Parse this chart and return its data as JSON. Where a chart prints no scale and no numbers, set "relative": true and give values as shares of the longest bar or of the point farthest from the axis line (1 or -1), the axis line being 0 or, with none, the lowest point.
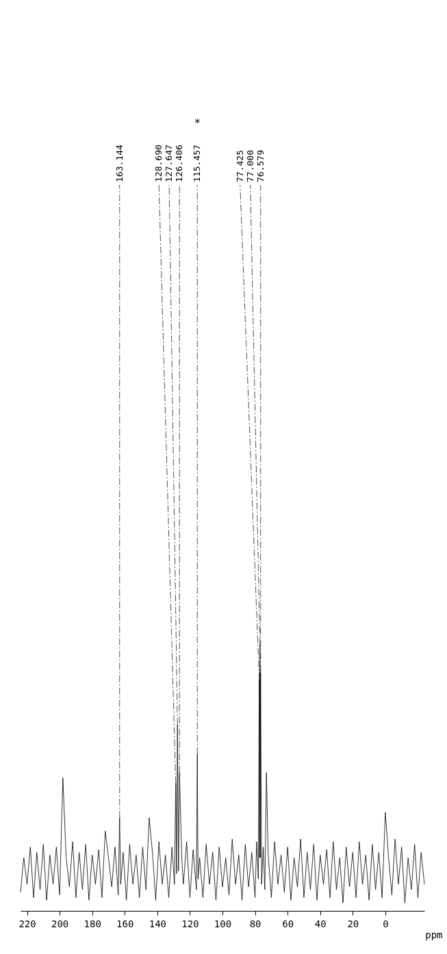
{
  "chart_data": {
    "type": "line",
    "relative": true,
    "xlabel": "ppm",
    "xlim": [
      224,
      -24
    ],
    "xticks": [
      0,
      20,
      40,
      60,
      80,
      100,
      120,
      140,
      160,
      180,
      200,
      220
    ],
    "grid": false,
    "series": [
      {
        "color": "#000000",
        "x": [
          -24,
          -22,
          -20,
          -18,
          -16,
          -14,
          -12,
          -10,
          -8,
          -6,
          -4,
          -2,
          0,
          2,
          4,
          6,
          8,
          10,
          12,
          14,
          16,
          18,
          20,
          22,
          24,
          26,
          28,
          30,
          32,
          34,
          36,
          38,
          40,
          42,
          44,
          46,
          48,
          50,
          52,
          54,
          56,
          58,
          60,
          62,
          64,
          66,
          68,
          70,
          72,
          73,
          74,
          75,
          76,
          76.579,
          76.8,
          77.0,
          77.2,
          77.425,
          78,
          79,
          80,
          82,
          84,
          86,
          88,
          90,
          92,
          94,
          96,
          98,
          100,
          102,
          104,
          106,
          108,
          110,
          112,
          114,
          115,
          115.457,
          116,
          118,
          120,
          122,
          124,
          125,
          126.406,
          127,
          127.647,
          128.2,
          128.69,
          129.5,
          131,
          133,
          135,
          137,
          139,
          141,
          143,
          145,
          147,
          149,
          151,
          153,
          155,
          157,
          159,
          161,
          162.5,
          163.144,
          164,
          166,
          168,
          170,
          172,
          174,
          176,
          178,
          180,
          182,
          184,
          186,
          188,
          190,
          192,
          194,
          196,
          198,
          200,
          202,
          204,
          206,
          208,
          210,
          212,
          214,
          216,
          218,
          220,
          222,
          224
        ],
        "values": [
          0.1,
          0.22,
          0.05,
          0.25,
          0.08,
          0.2,
          0.03,
          0.24,
          0.1,
          0.27,
          0.06,
          0.2,
          0.37,
          0.05,
          0.22,
          0.08,
          0.25,
          0.04,
          0.21,
          0.1,
          0.26,
          0.05,
          0.22,
          0.09,
          0.24,
          0.03,
          0.2,
          0.08,
          0.26,
          0.05,
          0.23,
          0.1,
          0.21,
          0.04,
          0.25,
          0.08,
          0.22,
          0.05,
          0.27,
          0.09,
          0.2,
          0.04,
          0.24,
          0.07,
          0.21,
          0.1,
          0.26,
          0.05,
          0.22,
          0.52,
          0.08,
          0.24,
          0.1,
          0.9,
          0.2,
          1.0,
          0.2,
          0.87,
          0.12,
          0.26,
          0.05,
          0.22,
          0.09,
          0.25,
          0.04,
          0.21,
          0.1,
          0.27,
          0.06,
          0.2,
          0.09,
          0.24,
          0.04,
          0.22,
          0.1,
          0.25,
          0.05,
          0.2,
          0.12,
          0.59,
          0.08,
          0.23,
          0.05,
          0.26,
          0.1,
          0.2,
          0.52,
          0.15,
          0.7,
          0.14,
          0.48,
          0.1,
          0.24,
          0.05,
          0.21,
          0.1,
          0.26,
          0.04,
          0.22,
          0.35,
          0.08,
          0.24,
          0.05,
          0.21,
          0.1,
          0.25,
          0.04,
          0.22,
          0.1,
          0.35,
          0.06,
          0.24,
          0.09,
          0.2,
          0.3,
          0.05,
          0.23,
          0.1,
          0.21,
          0.04,
          0.25,
          0.08,
          0.22,
          0.05,
          0.26,
          0.09,
          0.2,
          0.5,
          0.06,
          0.24,
          0.1,
          0.21,
          0.04,
          0.25,
          0.08,
          0.22,
          0.05,
          0.24,
          0.1,
          0.2,
          0.07
        ]
      }
    ],
    "annotations": [
      {
        "text": "76.579",
        "x": 76.579,
        "y": 0.9
      },
      {
        "text": "77.000",
        "x": 77.0,
        "y": 1.0
      },
      {
        "text": "77.425",
        "x": 77.425,
        "y": 0.87
      },
      {
        "text": "115.457",
        "x": 115.457,
        "y": 0.59
      },
      "*",
      {
        "text": "126.406",
        "x": 126.406,
        "y": 0.52
      },
      {
        "text": "127.647",
        "x": 127.647,
        "y": 0.7
      },
      {
        "text": "128.690",
        "x": 128.69,
        "y": 0.48
      },
      {
        "text": "163.144",
        "x": 163.144,
        "y": 0.35
      }
    ]
  }
}
